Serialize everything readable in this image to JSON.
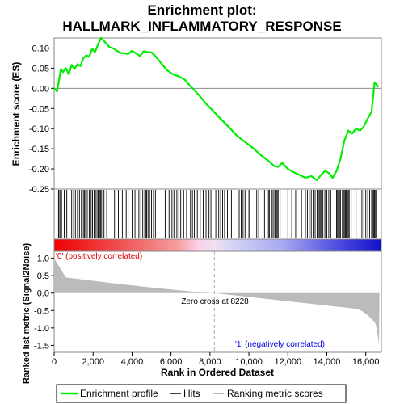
{
  "chart_data": {
    "type": "line",
    "title_line1": "Enrichment plot:",
    "title_line2": "HALLMARK_INFLAMMATORY_RESPONSE",
    "ylabel_es": "Enrichment score (ES)",
    "ylabel_metric": "Ranked list metric (Signal2Noise)",
    "xlabel": "Rank in Ordered Dataset",
    "xlim": [
      0,
      16800
    ],
    "es_ylim": [
      -0.25,
      0.125
    ],
    "metric_ylim": [
      -1.7,
      1.2
    ],
    "x_ticks": [
      0,
      2000,
      4000,
      6000,
      8000,
      10000,
      12000,
      14000,
      16000
    ],
    "x_tick_labels": [
      "0",
      "2,000",
      "4,000",
      "6,000",
      "8,000",
      "10,000",
      "12,000",
      "14,000",
      "16,000"
    ],
    "es_ticks": [
      0.1,
      0.05,
      0.0,
      -0.05,
      -0.1,
      -0.15,
      -0.2,
      -0.25
    ],
    "es_tick_labels": [
      "0.10",
      "0.05",
      "0.00",
      "-0.05",
      "-0.10",
      "-0.15",
      "-0.20",
      "-0.25"
    ],
    "metric_ticks": [
      1.0,
      0.5,
      0.0,
      -0.5,
      -1.0,
      -1.5
    ],
    "metric_tick_labels": [
      "1.0",
      "0.5",
      "0.0",
      "-0.5",
      "-1.0",
      "-1.5"
    ],
    "zero_cross_label": "Zero cross at 8228",
    "zero_cross": 8228,
    "pos_label": "'0' (positively correlated)",
    "neg_label": "'1' (negatively correlated)",
    "legend": [
      "Enrichment profile",
      "Hits",
      "Ranking metric scores"
    ],
    "colors": {
      "es_line": "#00ee00",
      "pos_label": "#dd0000",
      "neg_label": "#0000dd",
      "metric_fill": "#bbbbbb",
      "hits": "#000000"
    },
    "series": [
      {
        "name": "Enrichment profile",
        "x": [
          0,
          150,
          250,
          350,
          450,
          600,
          750,
          900,
          1050,
          1200,
          1350,
          1500,
          1650,
          1800,
          1950,
          2100,
          2250,
          2400,
          2550,
          2700,
          2850,
          3000,
          3200,
          3400,
          3600,
          3800,
          4000,
          4200,
          4400,
          4600,
          4800,
          5000,
          5200,
          5500,
          5800,
          6100,
          6400,
          6700,
          7000,
          7400,
          7800,
          8200,
          8600,
          9000,
          9400,
          9800,
          10200,
          10600,
          11000,
          11300,
          11500,
          11700,
          12000,
          12300,
          12600,
          12900,
          13200,
          13500,
          13700,
          13900,
          14100,
          14300,
          14500,
          14700,
          14900,
          15100,
          15300,
          15500,
          15700,
          15900,
          16100,
          16300,
          16450,
          16650
        ],
        "y": [
          0.0,
          -0.008,
          0.02,
          0.048,
          0.04,
          0.05,
          0.035,
          0.058,
          0.048,
          0.06,
          0.055,
          0.075,
          0.082,
          0.078,
          0.098,
          0.09,
          0.108,
          0.125,
          0.118,
          0.11,
          0.102,
          0.1,
          0.094,
          0.088,
          0.087,
          0.085,
          0.093,
          0.087,
          0.08,
          0.092,
          0.09,
          0.089,
          0.08,
          0.062,
          0.045,
          0.035,
          0.03,
          0.022,
          0.005,
          -0.015,
          -0.038,
          -0.058,
          -0.078,
          -0.098,
          -0.118,
          -0.133,
          -0.148,
          -0.165,
          -0.18,
          -0.193,
          -0.195,
          -0.185,
          -0.2,
          -0.208,
          -0.215,
          -0.222,
          -0.218,
          -0.228,
          -0.215,
          -0.205,
          -0.21,
          -0.222,
          -0.205,
          -0.175,
          -0.13,
          -0.105,
          -0.112,
          -0.1,
          -0.105,
          -0.095,
          -0.075,
          -0.058,
          0.015,
          0.003
        ]
      }
    ],
    "hits": [
      150,
      230,
      290,
      340,
      380,
      520,
      650,
      900,
      1000,
      1090,
      1200,
      1300,
      1400,
      1500,
      1560,
      1620,
      1700,
      1800,
      1900,
      1970,
      2050,
      2120,
      2200,
      2260,
      2330,
      2380,
      2440,
      2560,
      2700,
      3100,
      3300,
      3500,
      3700,
      3800,
      4000,
      4150,
      4350,
      4450,
      4550,
      4650,
      4700,
      4750,
      4820,
      4900,
      5000,
      5100,
      5200,
      5700,
      5900,
      6050,
      6150,
      6300,
      6400,
      6500,
      6650,
      6800,
      7000,
      7100,
      7200,
      7350,
      7500,
      7650,
      7800,
      7950,
      8050,
      8150,
      8300,
      8450,
      8550,
      8650,
      8750,
      8900,
      9100,
      9500,
      9600,
      9700,
      9800,
      10000,
      10050,
      10400,
      10500,
      10800,
      11000,
      11050,
      11150,
      11200,
      11280,
      11350,
      11400,
      11450,
      11500,
      11600,
      12000,
      12200,
      12400,
      12700,
      12900,
      13000,
      13100,
      13200,
      13300,
      13400,
      13500,
      13600,
      13650,
      13700,
      13800,
      13900,
      14000,
      14100,
      14200,
      14500,
      14550,
      14600,
      14650,
      14700,
      14800,
      14850,
      14900,
      14950,
      15000,
      15050,
      15100,
      15150,
      15250,
      15500,
      15800,
      15900,
      16000,
      16100,
      16200,
      16300,
      16350,
      16400,
      16450,
      16500,
      16550
    ]
  }
}
